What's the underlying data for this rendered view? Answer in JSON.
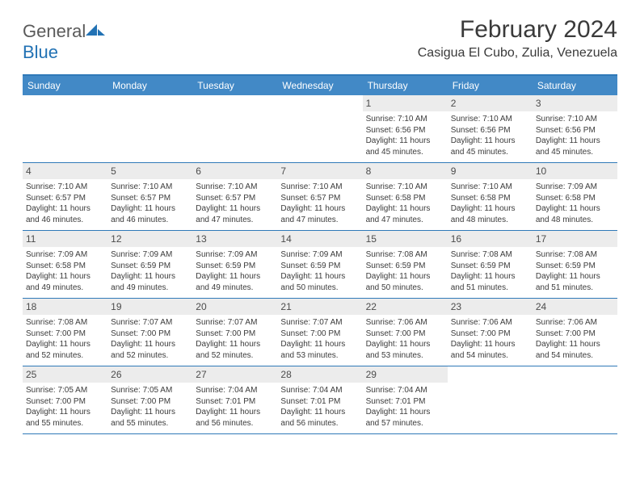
{
  "logo": {
    "word1": "General",
    "word2": "Blue"
  },
  "title": "February 2024",
  "location": "Casigua El Cubo, Zulia, Venezuela",
  "weekdays": [
    "Sunday",
    "Monday",
    "Tuesday",
    "Wednesday",
    "Thursday",
    "Friday",
    "Saturday"
  ],
  "colors": {
    "header_bg": "#4289c6",
    "border": "#2f79b8",
    "daynum_bg": "#ececec",
    "text": "#3b3b3b",
    "logo_gray": "#5a5a5a",
    "logo_blue": "#2272b4"
  },
  "weeks": [
    [
      null,
      null,
      null,
      null,
      {
        "n": "1",
        "sunrise": "7:10 AM",
        "sunset": "6:56 PM",
        "daylight": "11 hours and 45 minutes."
      },
      {
        "n": "2",
        "sunrise": "7:10 AM",
        "sunset": "6:56 PM",
        "daylight": "11 hours and 45 minutes."
      },
      {
        "n": "3",
        "sunrise": "7:10 AM",
        "sunset": "6:56 PM",
        "daylight": "11 hours and 45 minutes."
      }
    ],
    [
      {
        "n": "4",
        "sunrise": "7:10 AM",
        "sunset": "6:57 PM",
        "daylight": "11 hours and 46 minutes."
      },
      {
        "n": "5",
        "sunrise": "7:10 AM",
        "sunset": "6:57 PM",
        "daylight": "11 hours and 46 minutes."
      },
      {
        "n": "6",
        "sunrise": "7:10 AM",
        "sunset": "6:57 PM",
        "daylight": "11 hours and 47 minutes."
      },
      {
        "n": "7",
        "sunrise": "7:10 AM",
        "sunset": "6:57 PM",
        "daylight": "11 hours and 47 minutes."
      },
      {
        "n": "8",
        "sunrise": "7:10 AM",
        "sunset": "6:58 PM",
        "daylight": "11 hours and 47 minutes."
      },
      {
        "n": "9",
        "sunrise": "7:10 AM",
        "sunset": "6:58 PM",
        "daylight": "11 hours and 48 minutes."
      },
      {
        "n": "10",
        "sunrise": "7:09 AM",
        "sunset": "6:58 PM",
        "daylight": "11 hours and 48 minutes."
      }
    ],
    [
      {
        "n": "11",
        "sunrise": "7:09 AM",
        "sunset": "6:58 PM",
        "daylight": "11 hours and 49 minutes."
      },
      {
        "n": "12",
        "sunrise": "7:09 AM",
        "sunset": "6:59 PM",
        "daylight": "11 hours and 49 minutes."
      },
      {
        "n": "13",
        "sunrise": "7:09 AM",
        "sunset": "6:59 PM",
        "daylight": "11 hours and 49 minutes."
      },
      {
        "n": "14",
        "sunrise": "7:09 AM",
        "sunset": "6:59 PM",
        "daylight": "11 hours and 50 minutes."
      },
      {
        "n": "15",
        "sunrise": "7:08 AM",
        "sunset": "6:59 PM",
        "daylight": "11 hours and 50 minutes."
      },
      {
        "n": "16",
        "sunrise": "7:08 AM",
        "sunset": "6:59 PM",
        "daylight": "11 hours and 51 minutes."
      },
      {
        "n": "17",
        "sunrise": "7:08 AM",
        "sunset": "6:59 PM",
        "daylight": "11 hours and 51 minutes."
      }
    ],
    [
      {
        "n": "18",
        "sunrise": "7:08 AM",
        "sunset": "7:00 PM",
        "daylight": "11 hours and 52 minutes."
      },
      {
        "n": "19",
        "sunrise": "7:07 AM",
        "sunset": "7:00 PM",
        "daylight": "11 hours and 52 minutes."
      },
      {
        "n": "20",
        "sunrise": "7:07 AM",
        "sunset": "7:00 PM",
        "daylight": "11 hours and 52 minutes."
      },
      {
        "n": "21",
        "sunrise": "7:07 AM",
        "sunset": "7:00 PM",
        "daylight": "11 hours and 53 minutes."
      },
      {
        "n": "22",
        "sunrise": "7:06 AM",
        "sunset": "7:00 PM",
        "daylight": "11 hours and 53 minutes."
      },
      {
        "n": "23",
        "sunrise": "7:06 AM",
        "sunset": "7:00 PM",
        "daylight": "11 hours and 54 minutes."
      },
      {
        "n": "24",
        "sunrise": "7:06 AM",
        "sunset": "7:00 PM",
        "daylight": "11 hours and 54 minutes."
      }
    ],
    [
      {
        "n": "25",
        "sunrise": "7:05 AM",
        "sunset": "7:00 PM",
        "daylight": "11 hours and 55 minutes."
      },
      {
        "n": "26",
        "sunrise": "7:05 AM",
        "sunset": "7:00 PM",
        "daylight": "11 hours and 55 minutes."
      },
      {
        "n": "27",
        "sunrise": "7:04 AM",
        "sunset": "7:01 PM",
        "daylight": "11 hours and 56 minutes."
      },
      {
        "n": "28",
        "sunrise": "7:04 AM",
        "sunset": "7:01 PM",
        "daylight": "11 hours and 56 minutes."
      },
      {
        "n": "29",
        "sunrise": "7:04 AM",
        "sunset": "7:01 PM",
        "daylight": "11 hours and 57 minutes."
      },
      null,
      null
    ]
  ],
  "labels": {
    "sunrise": "Sunrise:",
    "sunset": "Sunset:",
    "daylight": "Daylight:"
  }
}
